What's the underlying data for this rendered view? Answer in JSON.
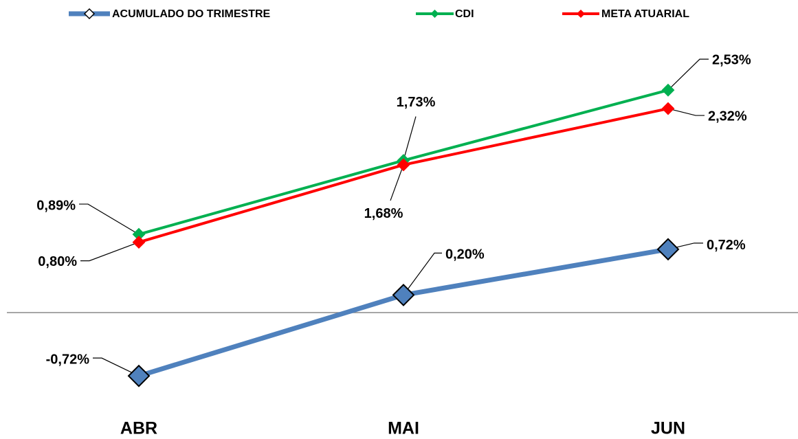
{
  "chart_data": {
    "type": "line",
    "categories": [
      "ABR",
      "MAI",
      "JUN"
    ],
    "series": [
      {
        "name": "ACUMULADO DO TRIMESTRE",
        "color": "#4f81bd",
        "values": [
          -0.72,
          0.2,
          0.72
        ],
        "value_labels": [
          "-0,72%",
          "0,20%",
          "0,72%"
        ]
      },
      {
        "name": "CDI",
        "color": "#00b050",
        "values": [
          0.89,
          1.73,
          2.53
        ],
        "value_labels": [
          "0,89%",
          "1,73%",
          "2,53%"
        ]
      },
      {
        "name": "META ATUARIAL",
        "color": "#ff0000",
        "values": [
          0.8,
          1.68,
          2.32
        ],
        "value_labels": [
          "0,80%",
          "1,68%",
          "2,32%"
        ]
      }
    ],
    "ylim": [
      -1,
      3
    ]
  }
}
